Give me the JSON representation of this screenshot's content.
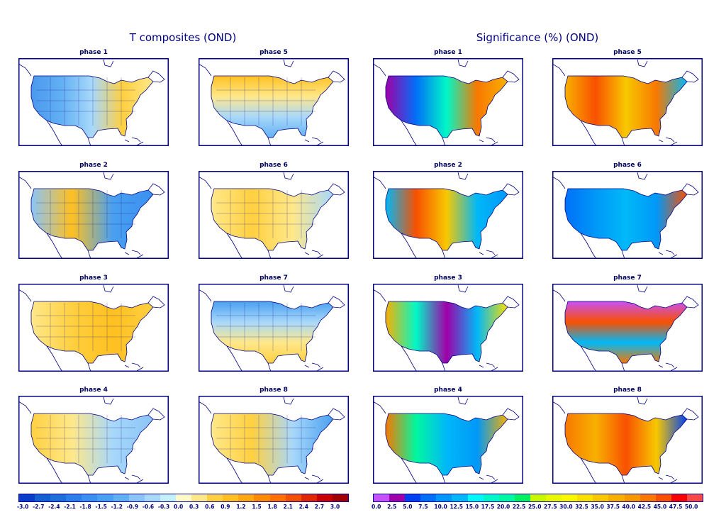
{
  "titles": {
    "left": "T composites (OND)",
    "right": "Significance (%) (OND)"
  },
  "panels_left": [
    {
      "title": "phase 1",
      "dir": "h",
      "stops": [
        "#4a98ec",
        "#62b0f4",
        "#a8d8fa",
        "#ffd040",
        "#ffe88a"
      ]
    },
    {
      "title": "phase 5",
      "dir": "v",
      "stops": [
        "#ffc020",
        "#ffe88a",
        "#a8d8fa",
        "#62b0f4"
      ]
    },
    {
      "title": "phase 2",
      "dir": "h",
      "stops": [
        "#8ac4f8",
        "#ffc020",
        "#4aa0f0",
        "#3a90f0"
      ]
    },
    {
      "title": "phase 6",
      "dir": "h",
      "stops": [
        "#ffe88a",
        "#ffd040",
        "#ffe88a",
        "#a8d8fa"
      ]
    },
    {
      "title": "phase 3",
      "dir": "h",
      "stops": [
        "#ffe88a",
        "#ffd040",
        "#ffc020",
        "#ffd040"
      ]
    },
    {
      "title": "phase 7",
      "dir": "v",
      "stops": [
        "#4aa0f0",
        "#a8d8fa",
        "#ffe88a",
        "#ffd040"
      ]
    },
    {
      "title": "phase 4",
      "dir": "h",
      "stops": [
        "#ffd040",
        "#ffe88a",
        "#a8d8fa",
        "#8ac4f8"
      ]
    },
    {
      "title": "phase 8",
      "dir": "h",
      "stops": [
        "#ffe88a",
        "#ffd040",
        "#a8d8fa",
        "#4aa0f0"
      ]
    }
  ],
  "panels_right": [
    {
      "title": "phase 1",
      "dir": "h",
      "stops": [
        "#a000a8",
        "#0070f8",
        "#00f8c8",
        "#f87800",
        "#f8b000"
      ]
    },
    {
      "title": "phase 5",
      "dir": "h",
      "stops": [
        "#f8b000",
        "#f85000",
        "#f8c800",
        "#f87800",
        "#00b8f8"
      ]
    },
    {
      "title": "phase 2",
      "dir": "h",
      "stops": [
        "#00b8f8",
        "#f85000",
        "#f8c800",
        "#00b8f8",
        "#0098f8"
      ]
    },
    {
      "title": "phase 6",
      "dir": "h",
      "stops": [
        "#0070f8",
        "#0098f8",
        "#00b8f8",
        "#0098f8",
        "#f85000"
      ]
    },
    {
      "title": "phase 3",
      "dir": "h",
      "stops": [
        "#f8b000",
        "#00f8c8",
        "#a000a8",
        "#00b8f8",
        "#f8e000"
      ]
    },
    {
      "title": "phase 7",
      "dir": "v",
      "stops": [
        "#c850f8",
        "#f85000",
        "#00b8f8",
        "#f87800"
      ]
    },
    {
      "title": "phase 4",
      "dir": "h",
      "stops": [
        "#f87800",
        "#00f8a0",
        "#00b8f8",
        "#0098f8",
        "#f8b000"
      ]
    },
    {
      "title": "phase 8",
      "dir": "h",
      "stops": [
        "#f87800",
        "#f8b000",
        "#f85000",
        "#f8c800",
        "#0040f0"
      ]
    }
  ],
  "colorbar_left": {
    "colors": [
      "#0a3ec8",
      "#1560d0",
      "#1e70d8",
      "#2a80e8",
      "#3a90f0",
      "#4aa0f0",
      "#62b0f4",
      "#8ac4f8",
      "#a8d8fa",
      "#c4f0fc",
      "#fffac8",
      "#ffe88a",
      "#ffd040",
      "#ffc020",
      "#ffa810",
      "#ff8c00",
      "#ff7000",
      "#f05000",
      "#e02800",
      "#c80000",
      "#a00000"
    ],
    "labels": [
      "-3.0",
      "-2.7",
      "-2.4",
      "-2.1",
      "-1.8",
      "-1.5",
      "-1.2",
      "-0.9",
      "-0.6",
      "-0.3",
      "0.0",
      "0.3",
      "0.6",
      "0.9",
      "1.2",
      "1.5",
      "1.8",
      "2.1",
      "2.4",
      "2.7",
      "3.0"
    ]
  },
  "colorbar_right": {
    "colors": [
      "#c850f8",
      "#a000a8",
      "#0040f0",
      "#0070f8",
      "#0098f8",
      "#00b8f8",
      "#00f8f8",
      "#00f8c8",
      "#00f8a0",
      "#00f060",
      "#c8f800",
      "#e8f800",
      "#f8f800",
      "#f8e000",
      "#f8c800",
      "#f8b000",
      "#f89800",
      "#f87800",
      "#f85000",
      "#f80000",
      "#f84848"
    ],
    "labels": [
      "0.0",
      "2.5",
      "5.0",
      "7.5",
      "10.0",
      "12.5",
      "15.0",
      "17.5",
      "20.0",
      "22.5",
      "25.0",
      "27.5",
      "30.0",
      "32.5",
      "35.0",
      "37.5",
      "40.0",
      "42.5",
      "45.0",
      "47.5",
      "50.0"
    ]
  }
}
